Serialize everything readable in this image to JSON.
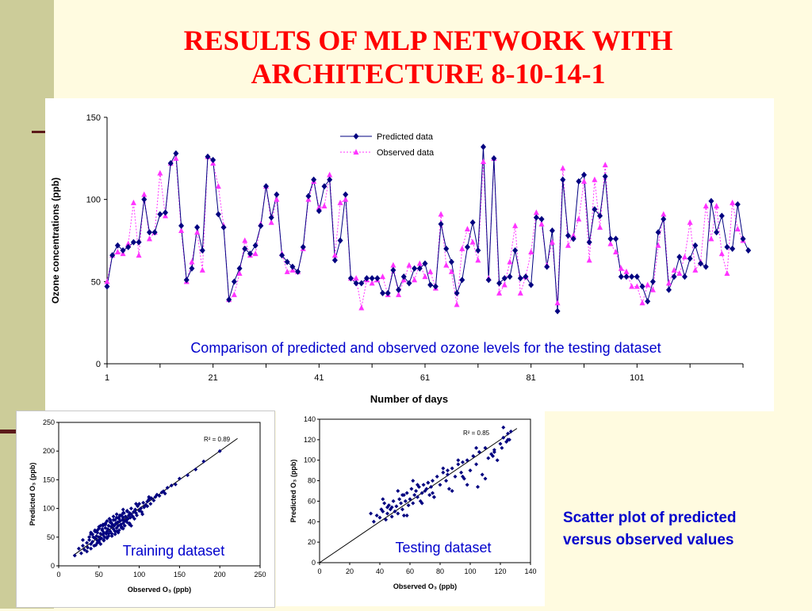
{
  "title_line1": "RESULTS OF MLP NETWORK WITH",
  "title_line2": "ARCHITECTURE 8-10-14-1",
  "scatter_caption_line1": "Scatter plot of predicted",
  "scatter_caption_line2": "versus observed values",
  "colors": {
    "predicted": "#000080",
    "observed": "#ff33ff",
    "title": "#ff0000",
    "caption": "#0000cc",
    "sidebar": "#cccc99",
    "background": "#fffbe0"
  },
  "chart_data": [
    {
      "type": "line",
      "annotation": "Comparison of predicted and observed ozone levels for the testing dataset",
      "xlabel": "Number of days",
      "ylabel": "Ozone concentrations (ppb)",
      "ylim": [
        0,
        150
      ],
      "xlim": [
        1,
        121
      ],
      "yticks": [
        0,
        50,
        100,
        150
      ],
      "xticks": [
        1,
        21,
        41,
        61,
        81,
        101
      ],
      "legend_position": "top-center",
      "series": [
        {
          "name": "Predicted data",
          "marker": "diamond",
          "values": [
            47,
            66,
            72,
            69,
            71,
            74,
            74,
            100,
            80,
            80,
            91,
            92,
            122,
            128,
            84,
            51,
            58,
            83,
            69,
            126,
            124,
            91,
            83,
            39,
            50,
            58,
            70,
            67,
            72,
            84,
            108,
            89,
            103,
            66,
            62,
            59,
            56,
            71,
            102,
            112,
            93,
            108,
            112,
            63,
            75,
            103,
            52,
            49,
            49,
            52,
            52,
            52,
            43,
            43,
            57,
            45,
            53,
            49,
            58,
            58,
            61,
            48,
            47,
            85,
            70,
            62,
            43,
            51,
            71,
            86,
            69,
            132,
            51,
            125,
            49,
            52,
            53,
            69,
            52,
            53,
            48,
            89,
            88,
            59,
            81,
            32,
            112,
            78,
            76,
            111,
            115,
            74,
            94,
            90,
            114,
            76,
            76,
            53,
            53,
            53,
            53,
            47,
            38,
            50,
            80,
            88,
            45,
            53,
            65,
            53,
            64,
            72,
            61,
            59,
            99,
            80,
            90,
            71,
            70,
            97,
            76,
            69
          ]
        },
        {
          "name": "Observed data",
          "marker": "triangle",
          "values": [
            50,
            66,
            68,
            67,
            73,
            98,
            66,
            103,
            76,
            80,
            116,
            90,
            122,
            125,
            81,
            50,
            62,
            80,
            57,
            126,
            122,
            108,
            84,
            39,
            42,
            55,
            75,
            66,
            67,
            85,
            108,
            86,
            100,
            67,
            56,
            57,
            56,
            70,
            100,
            111,
            95,
            96,
            115,
            66,
            98,
            100,
            52,
            52,
            34,
            51,
            49,
            51,
            53,
            42,
            60,
            42,
            51,
            60,
            51,
            61,
            53,
            56,
            46,
            91,
            60,
            56,
            36,
            70,
            82,
            74,
            63,
            123,
            52,
            125,
            43,
            48,
            62,
            84,
            43,
            53,
            68,
            92,
            85,
            60,
            74,
            37,
            119,
            72,
            78,
            88,
            111,
            63,
            112,
            83,
            121,
            73,
            68,
            58,
            56,
            47,
            47,
            37,
            48,
            45,
            72,
            91,
            49,
            57,
            55,
            65,
            86,
            57,
            62,
            96,
            76,
            96,
            67,
            55,
            98,
            82,
            75
          ]
        }
      ]
    },
    {
      "type": "scatter",
      "annotation": "Training dataset",
      "r2_label": "R² = 0.89",
      "xlabel": "Observed O₃ (ppb)",
      "ylabel": "Predicted O₃ (ppb)",
      "xlim": [
        0,
        250
      ],
      "ylim": [
        0,
        250
      ],
      "xticks": [
        0,
        50,
        100,
        150,
        200,
        250
      ],
      "yticks": [
        0,
        50,
        100,
        150,
        200,
        250
      ],
      "fit_line": [
        [
          18,
          18
        ],
        [
          222,
          222
        ]
      ],
      "x": [
        20,
        25,
        28,
        30,
        32,
        35,
        36,
        38,
        40,
        40,
        42,
        43,
        45,
        45,
        46,
        47,
        48,
        48,
        50,
        50,
        51,
        52,
        52,
        53,
        54,
        55,
        55,
        56,
        57,
        58,
        58,
        59,
        60,
        60,
        61,
        62,
        62,
        63,
        64,
        65,
        65,
        66,
        67,
        68,
        68,
        69,
        70,
        70,
        71,
        72,
        72,
        73,
        74,
        75,
        75,
        76,
        77,
        78,
        78,
        79,
        80,
        80,
        81,
        82,
        82,
        83,
        84,
        85,
        85,
        86,
        87,
        88,
        88,
        89,
        90,
        90,
        92,
        93,
        94,
        95,
        96,
        97,
        98,
        100,
        100,
        102,
        103,
        105,
        106,
        108,
        110,
        110,
        112,
        114,
        115,
        118,
        120,
        122,
        125,
        128,
        130,
        132,
        135,
        140,
        145,
        150,
        160,
        170,
        180,
        200,
        30,
        35,
        38,
        40,
        42,
        44,
        46,
        48,
        50,
        52,
        54,
        56,
        58,
        60,
        62,
        64,
        66,
        68,
        70,
        72,
        74,
        76,
        78,
        80,
        45,
        50,
        55,
        60,
        65,
        70,
        75,
        80,
        85,
        90,
        40,
        48,
        56,
        64,
        72,
        80,
        88,
        96,
        104,
        112
      ],
      "y": [
        18,
        30,
        22,
        35,
        28,
        40,
        32,
        45,
        38,
        55,
        42,
        50,
        48,
        60,
        36,
        52,
        44,
        58,
        50,
        65,
        46,
        56,
        70,
        48,
        62,
        54,
        72,
        58,
        50,
        66,
        74,
        56,
        60,
        78,
        64,
        52,
        70,
        82,
        60,
        68,
        76,
        56,
        72,
        64,
        86,
        70,
        60,
        80,
        74,
        66,
        90,
        76,
        70,
        82,
        62,
        78,
        72,
        88,
        68,
        80,
        84,
        74,
        92,
        78,
        70,
        86,
        80,
        76,
        96,
        82,
        88,
        74,
        92,
        84,
        90,
        100,
        86,
        94,
        82,
        98,
        92,
        88,
        104,
        96,
        108,
        100,
        94,
        110,
        102,
        106,
        112,
        104,
        116,
        108,
        118,
        114,
        120,
        124,
        122,
        128,
        130,
        126,
        136,
        140,
        142,
        152,
        158,
        168,
        182,
        200,
        45,
        25,
        50,
        30,
        55,
        35,
        60,
        40,
        68,
        38,
        64,
        44,
        72,
        48,
        56,
        76,
        52,
        80,
        60,
        84,
        58,
        88,
        66,
        92,
        62,
        42,
        70,
        50,
        75,
        55,
        85,
        65,
        95,
        70,
        58,
        62,
        45,
        80,
        60,
        98,
        72,
        108,
        90,
        120
      ]
    },
    {
      "type": "scatter",
      "annotation": "Testing dataset",
      "r2_label": "R² = 0.85",
      "xlabel": "Observed O₃ (ppb)",
      "ylabel": "Predicted O₃ (ppb)",
      "xlim": [
        0,
        140
      ],
      "ylim": [
        0,
        140
      ],
      "xticks": [
        0,
        20,
        40,
        60,
        80,
        100,
        120,
        140
      ],
      "yticks": [
        0,
        20,
        40,
        60,
        80,
        100,
        120,
        140
      ],
      "fit_line": [
        [
          0,
          0
        ],
        [
          131,
          131
        ]
      ],
      "x": [
        34,
        36,
        38,
        40,
        41,
        42,
        43,
        44,
        45,
        46,
        47,
        48,
        49,
        50,
        51,
        52,
        53,
        54,
        55,
        56,
        56,
        57,
        58,
        59,
        60,
        61,
        62,
        63,
        64,
        65,
        66,
        67,
        68,
        69,
        70,
        71,
        72,
        73,
        74,
        75,
        76,
        78,
        80,
        82,
        84,
        85,
        86,
        88,
        90,
        92,
        94,
        95,
        96,
        98,
        100,
        102,
        104,
        106,
        108,
        110,
        112,
        114,
        116,
        118,
        120,
        121,
        122,
        124,
        125,
        126,
        127,
        42,
        48,
        52,
        58,
        62,
        68,
        72,
        76,
        82,
        88,
        92,
        98,
        104,
        110,
        116,
        122,
        45,
        55,
        65,
        75,
        85,
        95,
        105,
        115,
        125
      ],
      "y": [
        48,
        40,
        46,
        44,
        52,
        50,
        58,
        42,
        48,
        56,
        52,
        45,
        60,
        50,
        55,
        48,
        62,
        58,
        52,
        66,
        46,
        60,
        68,
        56,
        62,
        72,
        58,
        66,
        70,
        64,
        74,
        60,
        68,
        76,
        70,
        72,
        78,
        66,
        74,
        80,
        64,
        84,
        76,
        88,
        80,
        86,
        72,
        92,
        84,
        96,
        88,
        98,
        82,
        100,
        90,
        104,
        96,
        108,
        86,
        112,
        102,
        106,
        110,
        100,
        116,
        112,
        122,
        118,
        126,
        120,
        128,
        62,
        54,
        70,
        46,
        80,
        58,
        78,
        64,
        92,
        70,
        100,
        76,
        112,
        82,
        108,
        132,
        54,
        66,
        76,
        68,
        90,
        84,
        74,
        104,
        120
      ]
    }
  ]
}
